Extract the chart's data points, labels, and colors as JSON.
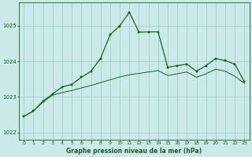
{
  "title": "Graphe pression niveau de la mer (hPa)",
  "background_color": "#cce9e9",
  "grid_color": "#99cccc",
  "line_color_dark": "#1a5c1a",
  "line_color_mid": "#2d7a2d",
  "xlim": [
    -0.5,
    23.5
  ],
  "ylim": [
    1021.8,
    1025.65
  ],
  "yticks": [
    1022,
    1023,
    1024,
    1025
  ],
  "xticks": [
    0,
    1,
    2,
    3,
    4,
    5,
    6,
    7,
    8,
    9,
    10,
    11,
    12,
    13,
    14,
    15,
    16,
    17,
    18,
    19,
    20,
    21,
    22,
    23
  ],
  "series1_x": [
    0,
    1,
    2,
    3,
    4,
    5,
    6,
    7,
    8,
    9,
    10,
    11,
    12,
    13,
    14,
    15,
    16,
    17,
    18,
    19,
    20,
    21,
    22,
    23
  ],
  "series1_y": [
    1022.45,
    1022.6,
    1022.85,
    1023.05,
    1023.12,
    1023.18,
    1023.25,
    1023.32,
    1023.4,
    1023.48,
    1023.56,
    1023.62,
    1023.66,
    1023.7,
    1023.74,
    1023.6,
    1023.65,
    1023.7,
    1023.55,
    1023.65,
    1023.78,
    1023.72,
    1023.58,
    1023.38
  ],
  "series2_x": [
    0,
    1,
    2,
    3,
    4,
    5,
    6,
    7,
    8,
    9,
    10,
    11,
    12,
    13,
    14,
    15,
    16,
    17,
    18,
    19,
    20,
    21,
    22,
    23
  ],
  "series2_y": [
    1022.45,
    1022.6,
    1022.88,
    1023.08,
    1023.28,
    1023.35,
    1023.55,
    1023.72,
    1024.08,
    1024.75,
    1024.98,
    1025.38,
    1024.82,
    1024.83,
    1024.83,
    1023.83,
    1023.88,
    1023.92,
    1023.72,
    1023.88,
    1024.08,
    1024.02,
    1023.92,
    1023.42
  ],
  "series3_x": [
    0,
    1,
    2,
    3,
    4,
    5,
    6,
    7,
    8,
    9,
    10,
    11,
    12,
    13,
    14,
    15,
    16,
    17,
    18,
    19,
    20,
    21,
    22,
    23
  ],
  "series3_y": [
    1022.45,
    1022.6,
    1022.88,
    1023.08,
    1023.28,
    1023.35,
    1023.55,
    1023.72,
    1024.08,
    1024.75,
    1025.0,
    1025.38,
    1024.82,
    1024.83,
    1024.83,
    1023.83,
    1023.88,
    1023.92,
    1023.72,
    1023.88,
    1024.08,
    1024.02,
    1023.92,
    1023.42
  ]
}
